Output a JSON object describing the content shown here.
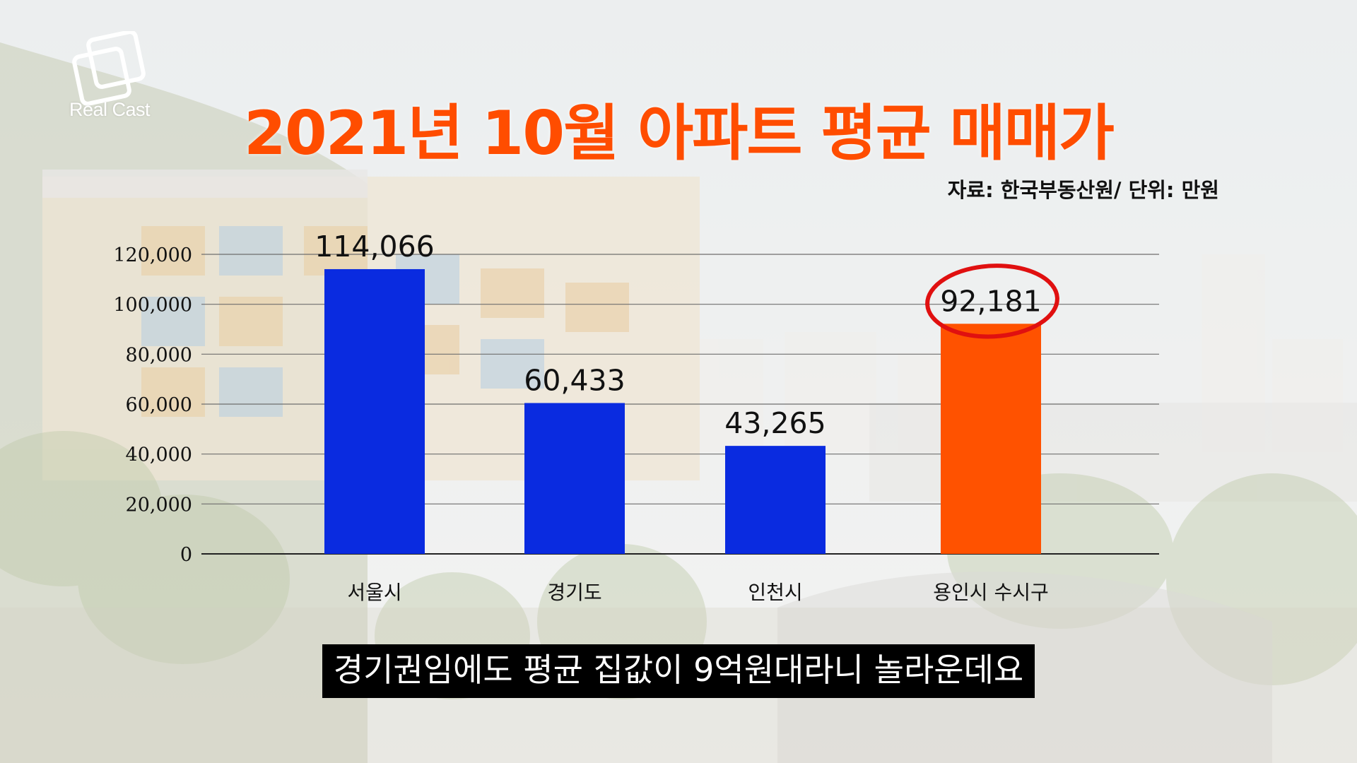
{
  "logo": {
    "text": "Real Cast",
    "icon": "overlapping-squares-logo"
  },
  "subtitle_note": "자료: 한국부동산원/ 단위: 만원",
  "caption": "경기권임에도 평균 집값이 9억원대라니 놀라운데요",
  "colors": {
    "title": "#ff4d00",
    "bar_default": "#0a2be0",
    "bar_highlight": "#ff5200",
    "highlight_circle": "#e01010"
  },
  "chart_data": {
    "type": "bar",
    "title": "2021년 10월 아파트 평균 매매가",
    "categories": [
      "서울시",
      "경기도",
      "인천시",
      "용인시 수시구"
    ],
    "values": [
      114066,
      60433,
      43265,
      92181
    ],
    "value_labels": [
      "114,066",
      "60,433",
      "43,265",
      "92,181"
    ],
    "ylim": [
      0,
      120000
    ],
    "yticks": [
      0,
      20000,
      40000,
      60000,
      80000,
      100000,
      120000
    ],
    "ytick_labels": [
      "0",
      "20,000",
      "40,000",
      "60,000",
      "80,000",
      "100,000",
      "120,000"
    ],
    "highlight_index": 3,
    "grid": true,
    "xlabel": "",
    "ylabel": ""
  }
}
